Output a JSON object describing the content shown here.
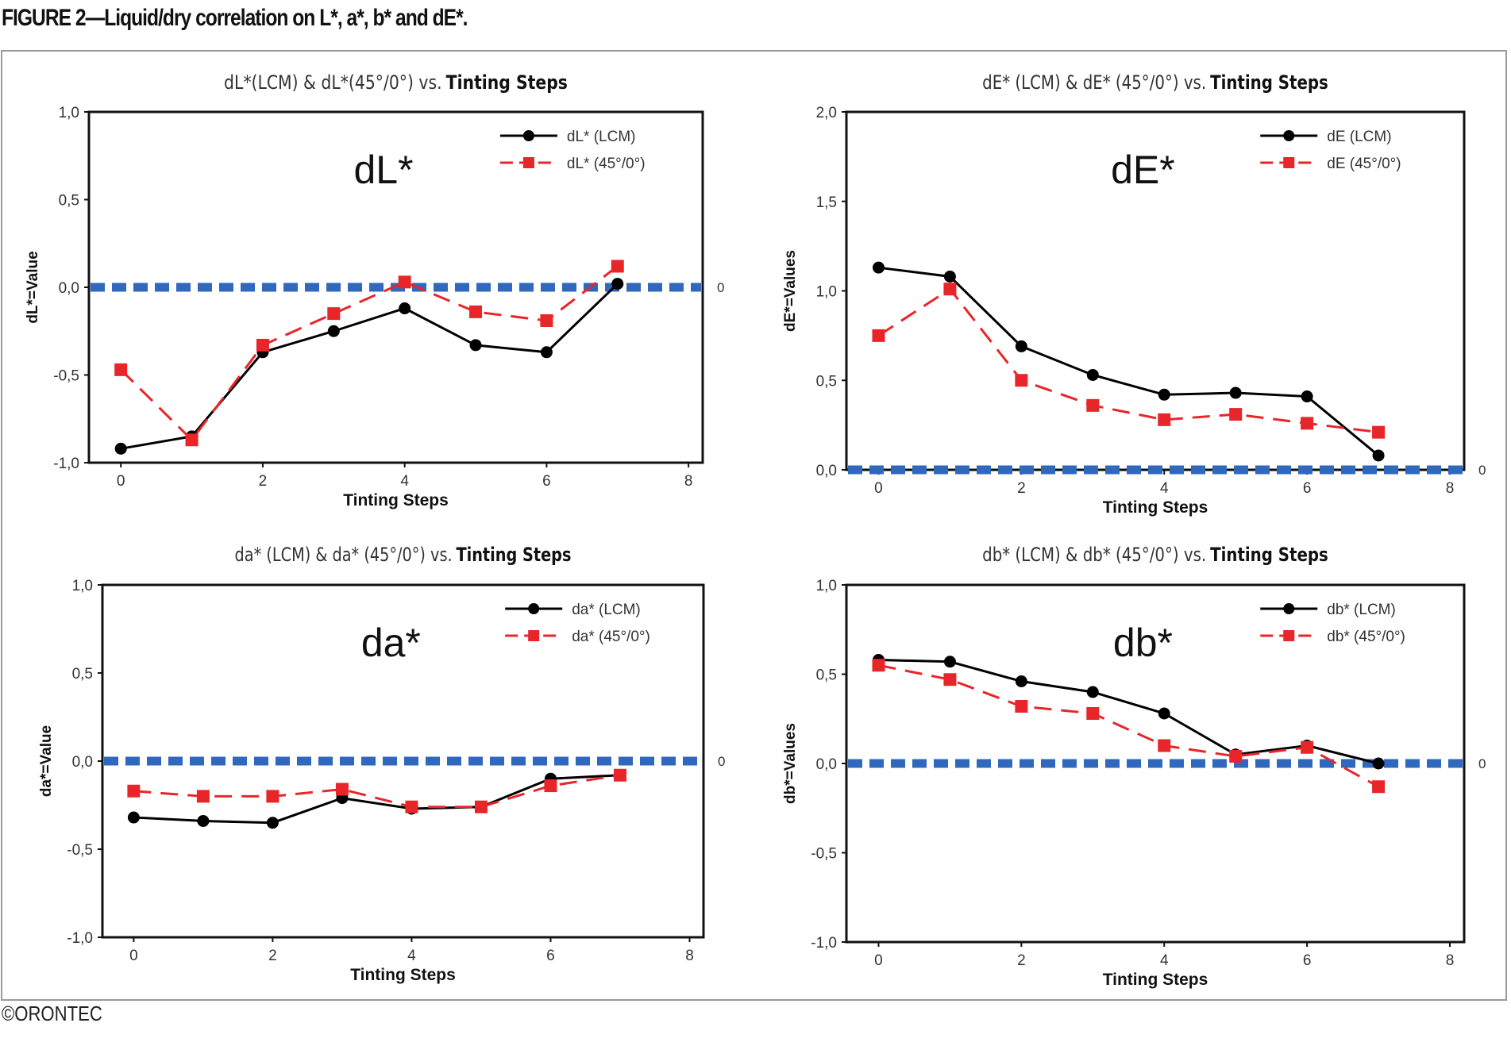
{
  "caption": "FIGURE 2—Liquid/dry correlation on L*, a*, b* and dE*.",
  "credit": "©ORONTEC",
  "colors": {
    "lcm": "#000000",
    "geom": "#e8262a",
    "zero_line": "#2f68bd"
  },
  "chart_data": [
    {
      "type": "line",
      "title_parts": [
        "dL*(LCM) & dL*(45°/0°) vs.",
        "Tinting Steps"
      ],
      "big_label": "dL*",
      "xlabel": "Tinting Steps",
      "ylabel": "dL*=Value",
      "xlim": [
        -0.45,
        8.2
      ],
      "ylim": [
        -1.0,
        1.0
      ],
      "xticks": [
        "0",
        "2",
        "4",
        "6",
        "8"
      ],
      "yticks": [
        "-1,0",
        "-0,5",
        "0,0",
        "0,5",
        "1,0"
      ],
      "reference_line": {
        "y": 0,
        "label": "0"
      },
      "legend_position": "top-right",
      "x": [
        0,
        1,
        2,
        3,
        4,
        5,
        6,
        7
      ],
      "series": [
        {
          "name": "dL* (LCM)",
          "values": [
            -0.92,
            -0.85,
            -0.37,
            -0.25,
            -0.12,
            -0.33,
            -0.37,
            0.02
          ]
        },
        {
          "name": "dL* (45°/0°)",
          "values": [
            -0.47,
            -0.87,
            -0.33,
            -0.15,
            0.03,
            -0.14,
            -0.19,
            0.12
          ]
        }
      ]
    },
    {
      "type": "line",
      "title_parts": [
        "dE* (LCM) & dE* (45°/0°) vs.",
        "Tinting Steps"
      ],
      "big_label": "dE*",
      "xlabel": "Tinting Steps",
      "ylabel": "dE*=Values",
      "xlim": [
        -0.45,
        8.2
      ],
      "ylim": [
        0.0,
        2.0
      ],
      "xticks": [
        "0",
        "2",
        "4",
        "6",
        "8"
      ],
      "yticks": [
        "0,0",
        "0,5",
        "1,0",
        "1,5",
        "2,0"
      ],
      "reference_line": {
        "y": 0,
        "label": "0"
      },
      "legend_position": "top-right",
      "x": [
        0,
        1,
        2,
        3,
        4,
        5,
        6,
        7
      ],
      "series": [
        {
          "name": "dE (LCM)",
          "values": [
            1.13,
            1.08,
            0.69,
            0.53,
            0.42,
            0.43,
            0.41,
            0.08
          ]
        },
        {
          "name": "dE (45°/0°)",
          "values": [
            0.75,
            1.01,
            0.5,
            0.36,
            0.28,
            0.31,
            0.26,
            0.21
          ]
        }
      ]
    },
    {
      "type": "line",
      "title_parts": [
        "da* (LCM) & da* (45°/0°) vs.",
        "Tinting Steps"
      ],
      "big_label": "da*",
      "xlabel": "Tinting Steps",
      "ylabel": "da*=Value",
      "xlim": [
        -0.45,
        8.2
      ],
      "ylim": [
        -1.0,
        1.0
      ],
      "xticks": [
        "0",
        "2",
        "4",
        "6",
        "8"
      ],
      "yticks": [
        "-1,0",
        "-0,5",
        "0,0",
        "0,5",
        "1,0"
      ],
      "reference_line": {
        "y": 0,
        "label": "0"
      },
      "legend_position": "top-right",
      "x": [
        0,
        1,
        2,
        3,
        4,
        5,
        6,
        7
      ],
      "series": [
        {
          "name": "da* (LCM)",
          "values": [
            -0.32,
            -0.34,
            -0.35,
            -0.21,
            -0.27,
            -0.26,
            -0.1,
            -0.08
          ]
        },
        {
          "name": "da* (45°/0°)",
          "values": [
            -0.17,
            -0.2,
            -0.2,
            -0.16,
            -0.26,
            -0.26,
            -0.14,
            -0.08
          ]
        }
      ]
    },
    {
      "type": "line",
      "title_parts": [
        "db* (LCM) &  db* (45°/0°) vs.",
        "Tinting Steps"
      ],
      "big_label": "db*",
      "xlabel": "Tinting Steps",
      "ylabel": "db*=Values",
      "xlim": [
        -0.45,
        8.2
      ],
      "ylim": [
        -1.0,
        1.0
      ],
      "xticks": [
        "0",
        "2",
        "4",
        "6",
        "8"
      ],
      "yticks": [
        "-1,0",
        "-0,5",
        "0,0",
        "0,5",
        "1,0"
      ],
      "reference_line": {
        "y": 0,
        "label": "0"
      },
      "legend_position": "top-right",
      "x": [
        0,
        1,
        2,
        3,
        4,
        5,
        6,
        7
      ],
      "series": [
        {
          "name": "db* (LCM)",
          "values": [
            0.58,
            0.57,
            0.46,
            0.4,
            0.28,
            0.05,
            0.1,
            0.0
          ]
        },
        {
          "name": "db* (45°/0°)",
          "values": [
            0.55,
            0.47,
            0.32,
            0.28,
            0.1,
            0.04,
            0.09,
            -0.13
          ]
        }
      ]
    }
  ]
}
